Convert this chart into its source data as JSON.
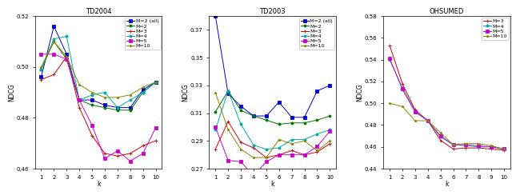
{
  "k": [
    1,
    2,
    3,
    4,
    5,
    6,
    7,
    8,
    9,
    10
  ],
  "td2004": {
    "title": "TD2004",
    "ylabel": "NDCG",
    "xlabel": "k",
    "ylim": [
      0.46,
      0.52
    ],
    "yticks": [
      0.46,
      0.48,
      0.5,
      0.52
    ],
    "series": {
      "M=2 (all)": {
        "color": "#0000cc",
        "marker": "s",
        "data": [
          0.496,
          0.516,
          0.505,
          0.487,
          0.487,
          0.485,
          0.484,
          0.484,
          0.491,
          0.494
        ]
      },
      "M=2": {
        "color": "#007700",
        "marker": "o",
        "data": [
          0.499,
          0.51,
          0.503,
          0.487,
          0.485,
          0.484,
          0.483,
          0.483,
          0.49,
          0.494
        ]
      },
      "M=3": {
        "color": "#cc0000",
        "marker": "+",
        "data": [
          0.495,
          0.497,
          0.504,
          0.484,
          0.473,
          0.466,
          0.465,
          0.466,
          0.469,
          0.471
        ]
      },
      "M=4": {
        "color": "#00aaaa",
        "marker": "o",
        "data": [
          0.499,
          0.511,
          0.512,
          0.487,
          0.489,
          0.49,
          0.484,
          0.487,
          0.49,
          0.494
        ]
      },
      "M=5": {
        "color": "#cc00cc",
        "marker": "s",
        "data": [
          0.505,
          0.505,
          0.503,
          0.487,
          0.477,
          0.464,
          0.467,
          0.463,
          0.466,
          0.476
        ]
      },
      "M=10": {
        "color": "#888800",
        "marker": "*",
        "data": [
          0.5,
          0.51,
          0.504,
          0.493,
          0.49,
          0.488,
          0.488,
          0.489,
          0.492,
          0.494
        ]
      }
    }
  },
  "td2003": {
    "title": "TD2003",
    "ylabel": "NDCG",
    "xlabel": "k",
    "ylim": [
      0.27,
      0.38
    ],
    "yticks": [
      0.27,
      0.29,
      0.31,
      0.33,
      0.35,
      0.37
    ],
    "series": {
      "M=2 (all)": {
        "color": "#0000cc",
        "marker": "s",
        "data": [
          0.38,
          0.324,
          0.315,
          0.308,
          0.308,
          0.318,
          0.307,
          0.307,
          0.326,
          0.33
        ]
      },
      "M=2": {
        "color": "#007700",
        "marker": "o",
        "data": [
          0.311,
          0.326,
          0.312,
          0.308,
          0.305,
          0.302,
          0.303,
          0.303,
          0.305,
          0.308
        ]
      },
      "M=3": {
        "color": "#cc0000",
        "marker": "+",
        "data": [
          0.284,
          0.304,
          0.289,
          0.285,
          0.278,
          0.28,
          0.283,
          0.28,
          0.282,
          0.288
        ]
      },
      "M=4": {
        "color": "#00aaaa",
        "marker": "o",
        "data": [
          0.298,
          0.326,
          0.302,
          0.287,
          0.284,
          0.285,
          0.291,
          0.291,
          0.295,
          0.298
        ]
      },
      "M=5": {
        "color": "#cc00cc",
        "marker": "s",
        "data": [
          0.3,
          0.276,
          0.275,
          0.265,
          0.275,
          0.28,
          0.28,
          0.28,
          0.286,
          0.297
        ]
      },
      "M=10": {
        "color": "#888800",
        "marker": "*",
        "data": [
          0.325,
          0.298,
          0.284,
          0.278,
          0.278,
          0.291,
          0.288,
          0.29,
          0.283,
          0.29
        ]
      }
    }
  },
  "ohsumed": {
    "title": "OHSUMED",
    "ylabel": "NDCG",
    "xlabel": "k",
    "ylim": [
      0.44,
      0.58
    ],
    "yticks": [
      0.44,
      0.46,
      0.48,
      0.5,
      0.52,
      0.54,
      0.56,
      0.58
    ],
    "series": {
      "M=3": {
        "color": "#cc0000",
        "marker": "+",
        "data": [
          0.553,
          0.518,
          0.494,
          0.484,
          0.466,
          0.458,
          0.459,
          0.459,
          0.458,
          0.457
        ]
      },
      "M=4": {
        "color": "#00aaaa",
        "marker": "o",
        "data": [
          0.54,
          0.514,
          0.493,
          0.484,
          0.469,
          0.462,
          0.461,
          0.46,
          0.46,
          0.458
        ]
      },
      "M=5": {
        "color": "#cc00cc",
        "marker": "s",
        "data": [
          0.541,
          0.513,
          0.492,
          0.484,
          0.47,
          0.462,
          0.462,
          0.461,
          0.46,
          0.458
        ]
      },
      "M=10": {
        "color": "#888800",
        "marker": "*",
        "data": [
          0.5,
          0.497,
          0.484,
          0.484,
          0.473,
          0.462,
          0.463,
          0.463,
          0.461,
          0.458
        ]
      }
    }
  }
}
